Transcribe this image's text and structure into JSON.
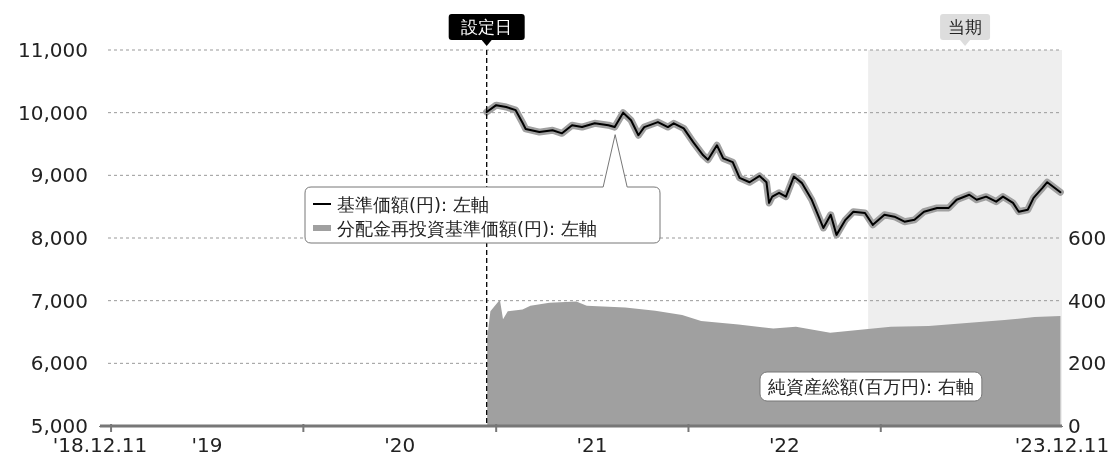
{
  "chart_data": {
    "type": "line",
    "xlim": [
      "2018-12-11",
      "2023-12-11"
    ],
    "xticks": [
      {
        "value": "2018-12-11",
        "label": "'18.12.11"
      },
      {
        "value": "2019-01-01",
        "label": null
      },
      {
        "value": "2019-07-02",
        "label": "'19"
      },
      {
        "value": "2020-01-01",
        "label": null
      },
      {
        "value": "2020-07-02",
        "label": "'20"
      },
      {
        "value": "2021-01-01",
        "label": null
      },
      {
        "value": "2021-07-02",
        "label": "'21"
      },
      {
        "value": "2022-01-01",
        "label": null
      },
      {
        "value": "2022-07-02",
        "label": "'22"
      },
      {
        "value": "2023-01-01",
        "label": null
      },
      {
        "value": "2023-12-11",
        "label": "'23.12.11"
      }
    ],
    "ylim": [
      5000,
      11000
    ],
    "yticks": [
      {
        "value": 5000,
        "label": "5,000"
      },
      {
        "value": 6000,
        "label": "6,000"
      },
      {
        "value": 7000,
        "label": "7,000"
      },
      {
        "value": 8000,
        "label": "8,000"
      },
      {
        "value": 9000,
        "label": "9,000"
      },
      {
        "value": 10000,
        "label": "10,000"
      },
      {
        "value": 11000,
        "label": "11,000"
      }
    ],
    "y2lim": [
      0,
      1200
    ],
    "y2ticks": [
      0,
      200,
      400,
      600
    ],
    "grid": "y",
    "legend": "left",
    "marker": "none",
    "ref_lines": [
      {
        "axis": "x",
        "value": "2020-12-14",
        "label": "設定日",
        "color": "#000000",
        "line_style": "dashed"
      }
    ],
    "bands": [
      {
        "axis": "x",
        "from": "2022-12-08",
        "to": "2023-12-11",
        "label": "当期",
        "color": "#eeeeee"
      }
    ],
    "series": [
      {
        "name": "基準価額(円): 左軸",
        "color": "#000000",
        "x": [
          "2020-12-14",
          "2021-01-01",
          "2021-01-20",
          "2021-02-07",
          "2021-02-20",
          "2021-02-26",
          "2021-03-24",
          "2021-04-18",
          "2021-05-06",
          "2021-05-25",
          "2021-06-13",
          "2021-07-07",
          "2021-08-02",
          "2021-08-14",
          "2021-08-30",
          "2021-09-14",
          "2021-09-28",
          "2021-10-09",
          "2021-11-04",
          "2021-11-23",
          "2021-12-04",
          "2021-12-23",
          "2022-01-10",
          "2022-01-29",
          "2022-02-07",
          "2022-02-24",
          "2022-03-08",
          "2022-03-26",
          "2022-04-08",
          "2022-04-27",
          "2022-05-16",
          "2022-05-29",
          "2022-06-03",
          "2022-06-09",
          "2022-06-22",
          "2022-07-05",
          "2022-07-20",
          "2022-08-04",
          "2022-08-23",
          "2022-09-14",
          "2022-09-28",
          "2022-10-09",
          "2022-10-26",
          "2022-11-10",
          "2022-12-02",
          "2022-12-17",
          "2023-01-08",
          "2023-01-27",
          "2023-02-15",
          "2023-03-06",
          "2023-03-24",
          "2023-04-18",
          "2023-05-10",
          "2023-05-25",
          "2023-06-18",
          "2023-07-02",
          "2023-07-20",
          "2023-08-08",
          "2023-08-21",
          "2023-09-09",
          "2023-09-20",
          "2023-10-07",
          "2023-10-18",
          "2023-11-04",
          "2023-11-13",
          "2023-12-08"
        ],
        "values": [
          10010,
          10120,
          10090,
          10040,
          9840,
          9740,
          9690,
          9720,
          9670,
          9800,
          9770,
          9830,
          9800,
          9770,
          10000,
          9880,
          9640,
          9770,
          9850,
          9770,
          9830,
          9750,
          9530,
          9320,
          9250,
          9480,
          9270,
          9210,
          8960,
          8890,
          8990,
          8890,
          8560,
          8660,
          8720,
          8660,
          8980,
          8880,
          8610,
          8160,
          8370,
          8050,
          8290,
          8420,
          8400,
          8210,
          8370,
          8340,
          8260,
          8290,
          8420,
          8480,
          8480,
          8610,
          8690,
          8610,
          8660,
          8580,
          8660,
          8560,
          8420,
          8450,
          8640,
          8800,
          8890,
          8730
        ]
      },
      {
        "name": "分配金再投資基準価額(円): 左軸",
        "color": "#a0a0a0",
        "x": [
          "2020-12-14",
          "2021-01-01",
          "2021-01-20",
          "2021-02-07",
          "2021-02-20",
          "2021-02-26",
          "2021-03-24",
          "2021-04-18",
          "2021-05-06",
          "2021-05-25",
          "2021-06-13",
          "2021-07-07",
          "2021-08-02",
          "2021-08-14",
          "2021-08-30",
          "2021-09-14",
          "2021-09-28",
          "2021-10-09",
          "2021-11-04",
          "2021-11-23",
          "2021-12-04",
          "2021-12-23",
          "2022-01-10",
          "2022-01-29",
          "2022-02-07",
          "2022-02-24",
          "2022-03-08",
          "2022-03-26",
          "2022-04-08",
          "2022-04-27",
          "2022-05-16",
          "2022-05-29",
          "2022-06-03",
          "2022-06-09",
          "2022-06-22",
          "2022-07-05",
          "2022-07-20",
          "2022-08-04",
          "2022-08-23",
          "2022-09-14",
          "2022-09-28",
          "2022-10-09",
          "2022-10-26",
          "2022-11-10",
          "2022-12-02",
          "2022-12-17",
          "2023-01-08",
          "2023-01-27",
          "2023-02-15",
          "2023-03-06",
          "2023-03-24",
          "2023-04-18",
          "2023-05-10",
          "2023-05-25",
          "2023-06-18",
          "2023-07-02",
          "2023-07-20",
          "2023-08-08",
          "2023-08-21",
          "2023-09-09",
          "2023-09-20",
          "2023-10-07",
          "2023-10-18",
          "2023-11-04",
          "2023-11-13",
          "2023-12-08"
        ],
        "values": [
          10010,
          10120,
          10090,
          10040,
          9840,
          9740,
          9690,
          9720,
          9670,
          9800,
          9770,
          9830,
          9800,
          9770,
          10000,
          9880,
          9640,
          9770,
          9850,
          9770,
          9830,
          9750,
          9530,
          9320,
          9250,
          9480,
          9270,
          9210,
          8960,
          8890,
          8990,
          8890,
          8560,
          8660,
          8720,
          8660,
          8980,
          8880,
          8610,
          8160,
          8370,
          8050,
          8290,
          8420,
          8400,
          8210,
          8370,
          8340,
          8260,
          8290,
          8420,
          8480,
          8480,
          8610,
          8690,
          8610,
          8660,
          8580,
          8660,
          8560,
          8420,
          8450,
          8640,
          8800,
          8890,
          8730
        ]
      },
      {
        "name": "純資産総額(百万円): 右軸",
        "color": "#a0a0a0",
        "type": "area",
        "axis": "y2",
        "x": [
          "2020-12-15",
          "2020-12-21",
          "2021-01-08",
          "2021-01-14",
          "2021-01-23",
          "2021-02-20",
          "2021-03-07",
          "2021-04-12",
          "2021-06-02",
          "2021-06-22",
          "2021-09-03",
          "2021-10-30",
          "2021-12-20",
          "2022-01-25",
          "2022-04-06",
          "2022-06-11",
          "2022-07-24",
          "2022-09-27",
          "2022-11-09",
          "2023-01-20",
          "2023-04-02",
          "2023-06-13",
          "2023-08-24",
          "2023-10-20",
          "2023-12-08"
        ],
        "values": [
          280,
          366,
          403,
          341,
          366,
          372,
          384,
          393,
          397,
          384,
          378,
          368,
          354,
          335,
          324,
          311,
          317,
          298,
          305,
          317,
          319,
          329,
          338,
          348,
          351
        ]
      }
    ]
  }
}
